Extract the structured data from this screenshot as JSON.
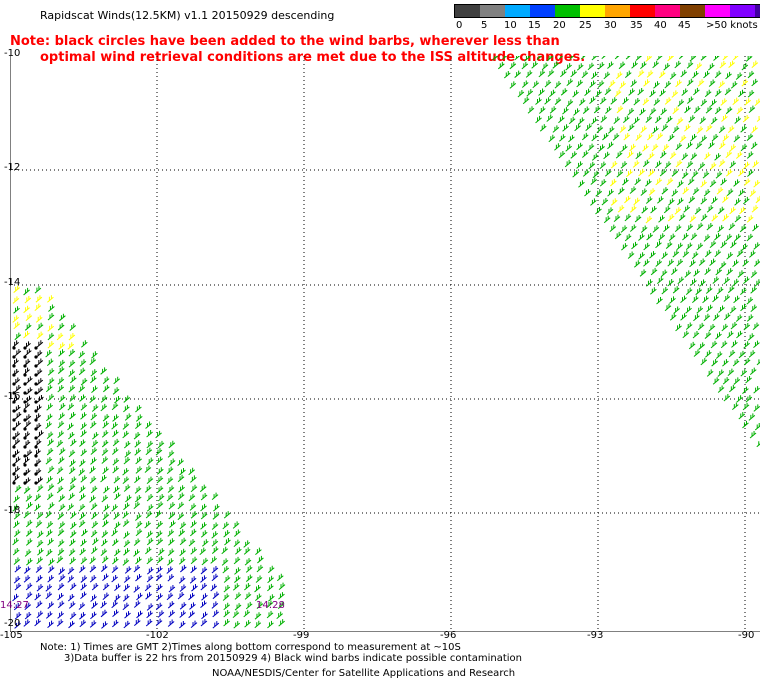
{
  "header": {
    "title": "Rapidscat Winds(12.5KM) v1.1 20150929 descending",
    "warning_line1": "Note: black circles have been added to the wind barbs, wherever less than",
    "warning_line2": "optimal wind retrieval conditions are met due to the ISS altitude changes."
  },
  "legend": {
    "colors": [
      "#404040",
      "#808080",
      "#00aaff",
      "#0040ff",
      "#00c000",
      "#ffff00",
      "#ffa500",
      "#ff0000",
      "#ff0080",
      "#804000",
      "#ff00ff",
      "#8000ff",
      "#4000a0"
    ],
    "labels": [
      "0",
      "5",
      "10",
      "15",
      "20",
      "25",
      "30",
      "35",
      "40",
      "45",
      ">50 knots"
    ]
  },
  "map": {
    "y_ticks": [
      "-10",
      "-12",
      "-14",
      "-16",
      "-18",
      "-20"
    ],
    "x_ticks": [
      "-105",
      "-102",
      "-99",
      "-96",
      "-93",
      "-90"
    ],
    "time_left": "14:27",
    "time_right": "14:28",
    "barb_colors": {
      "green": "#00b000",
      "yellow": "#ffff00",
      "blue": "#0000c0",
      "black": "#000000"
    }
  },
  "footer": {
    "note_line1": "Note: 1) Times are GMT 2)Times along bottom correspond to measurement at ~10S",
    "note_line2": "3)Data buffer is 22 hrs from 20150929 4) Black wind barbs indicate possible contamination",
    "credit": "NOAA/NESDIS/Center for Satellite Applications and Research"
  }
}
